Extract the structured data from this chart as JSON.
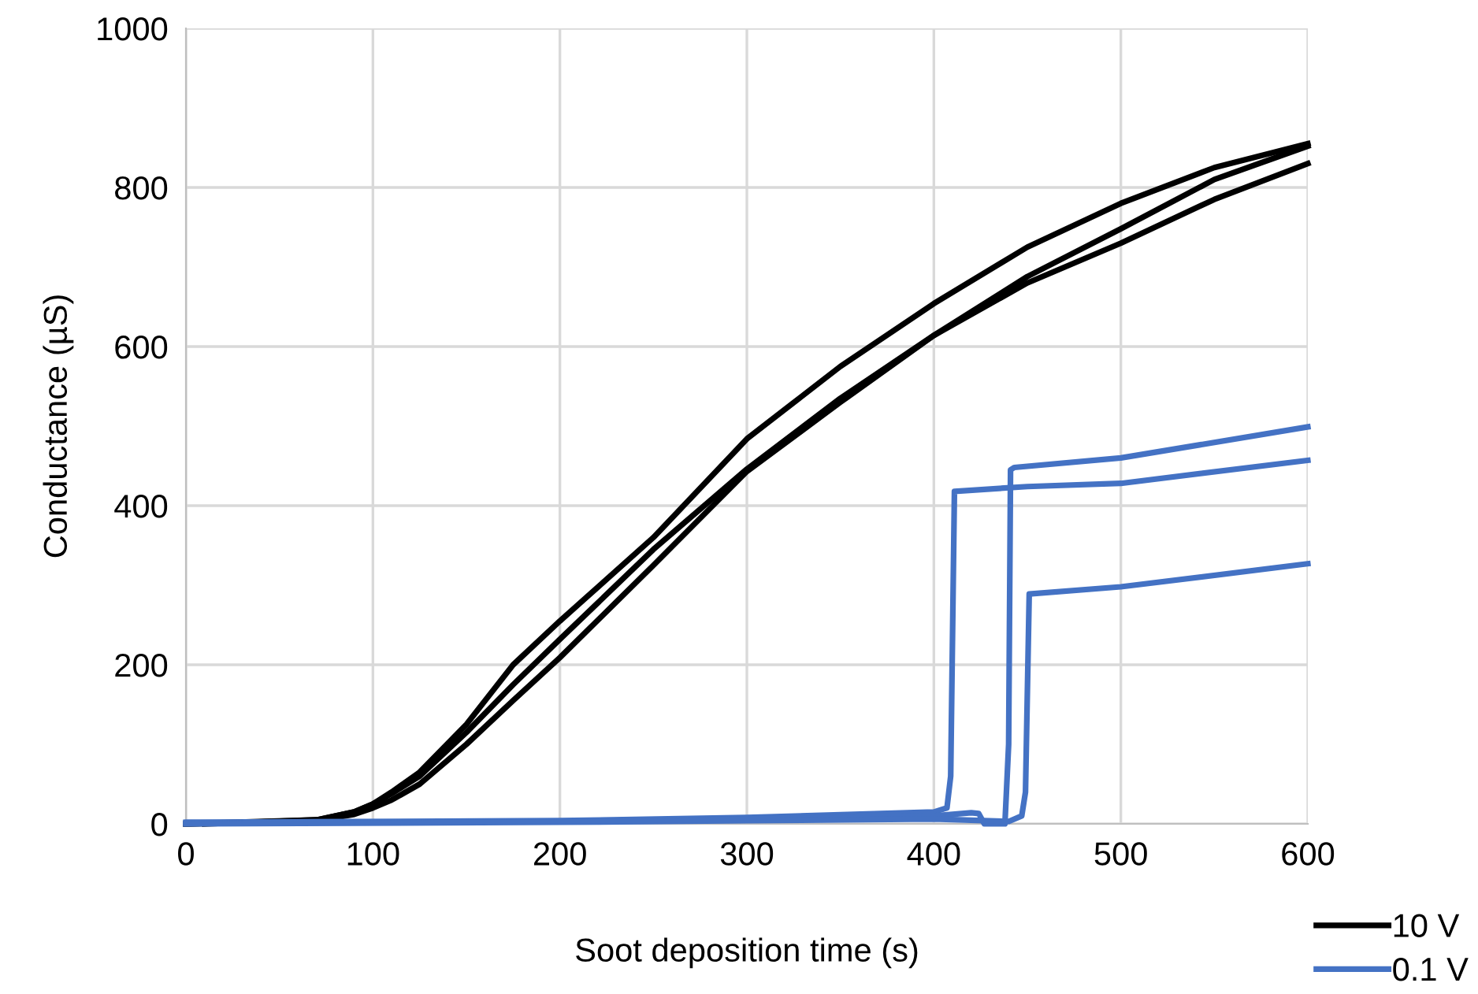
{
  "chart_data": {
    "type": "line",
    "xlabel": "Soot deposition time (s)",
    "ylabel": "Conductance (µS)",
    "xlim": [
      0,
      600
    ],
    "ylim": [
      0,
      1000
    ],
    "xticks": [
      0,
      100,
      200,
      300,
      400,
      500,
      600
    ],
    "yticks": [
      0,
      200,
      400,
      600,
      800,
      1000
    ],
    "grid": true,
    "legend": "bottom right",
    "marker": "none",
    "line_style": "solid",
    "series": [
      {
        "name": "10 V",
        "color": "#000000",
        "x": [
          0,
          70,
          90,
          100,
          110,
          125,
          150,
          175,
          200,
          250,
          300,
          350,
          400,
          450,
          500,
          550,
          600
        ],
        "values": [
          0,
          5,
          15,
          25,
          40,
          65,
          125,
          200,
          255,
          360,
          484,
          575,
          654,
          725,
          780,
          825,
          855
        ]
      },
      {
        "color": "#000000",
        "x": [
          10,
          70,
          90,
          100,
          110,
          125,
          150,
          175,
          200,
          250,
          300,
          350,
          400,
          450,
          500,
          550,
          600
        ],
        "values": [
          0,
          5,
          15,
          25,
          38,
          60,
          115,
          175,
          232,
          345,
          446,
          535,
          614,
          688,
          748,
          810,
          852
        ]
      },
      {
        "color": "#000000",
        "x": [
          0,
          70,
          90,
          100,
          110,
          125,
          150,
          175,
          200,
          250,
          300,
          350,
          400,
          450,
          500,
          550,
          600
        ],
        "values": [
          0,
          4,
          12,
          20,
          30,
          50,
          100,
          155,
          209,
          325,
          443,
          530,
          614,
          680,
          730,
          785,
          830
        ]
      },
      {
        "name": "0.1 V",
        "color": "#4472c4",
        "x": [
          0,
          200,
          300,
          400,
          407,
          409,
          411,
          450,
          500,
          600
        ],
        "values": [
          2,
          4,
          8,
          15,
          20,
          60,
          418,
          424,
          428,
          457
        ]
      },
      {
        "color": "#4472c4",
        "x": [
          0,
          200,
          300,
          400,
          420,
          424,
          427,
          438,
          440,
          441,
          443,
          500,
          600
        ],
        "values": [
          1,
          3,
          6,
          10,
          14,
          13,
          0,
          0,
          100,
          445,
          448,
          460,
          499
        ]
      },
      {
        "color": "#4472c4",
        "x": [
          0,
          200,
          300,
          400,
          440,
          447,
          449,
          451,
          500,
          600
        ],
        "values": [
          0,
          2,
          4,
          6,
          3,
          10,
          40,
          289,
          298,
          327
        ]
      }
    ]
  }
}
